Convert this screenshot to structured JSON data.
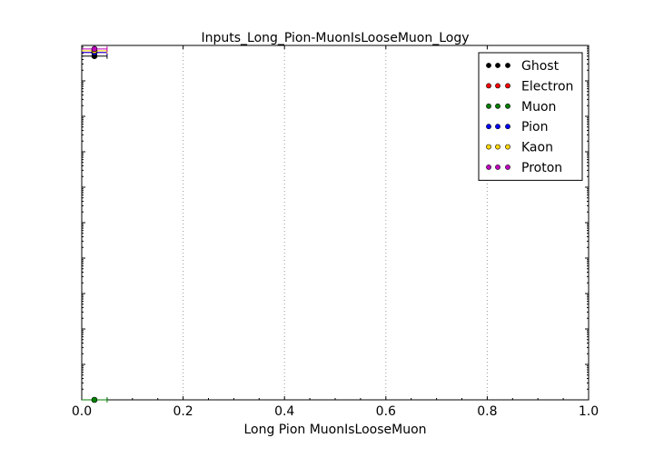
{
  "chart_data": {
    "type": "scatter",
    "title": "Inputs_Long_Pion-MuonIsLooseMuon_Logy",
    "xlabel": "Long Pion MuonIsLooseMuon",
    "ylabel": "",
    "xlim": [
      0.0,
      1.0
    ],
    "x_ticks": [
      "0.0",
      "0.2",
      "0.4",
      "0.6",
      "0.8",
      "1.0"
    ],
    "y_scale": "log",
    "y_tick_labels_visible": false,
    "grid": "vertical-dotted",
    "legend_position": "top-right",
    "x_bin_edges": [
      0.0,
      0.05
    ],
    "series": [
      {
        "name": "Ghost",
        "color": "#000000",
        "x": [
          0.025
        ],
        "y_frac": [
          0.97
        ]
      },
      {
        "name": "Electron",
        "color": "#ff0000",
        "x": [
          0.025
        ],
        "y_frac": [
          0.98
        ]
      },
      {
        "name": "Muon",
        "color": "#008000",
        "x": [
          0.025
        ],
        "y_frac": [
          0.0
        ]
      },
      {
        "name": "Pion",
        "color": "#0000ff",
        "x": [
          0.025
        ],
        "y_frac": [
          0.98
        ]
      },
      {
        "name": "Kaon",
        "color": "#ffd700",
        "x": [
          0.025
        ],
        "y_frac": [
          0.985
        ]
      },
      {
        "name": "Proton",
        "color": "#bf00bf",
        "x": [
          0.025
        ],
        "y_frac": [
          0.99
        ]
      }
    ]
  }
}
